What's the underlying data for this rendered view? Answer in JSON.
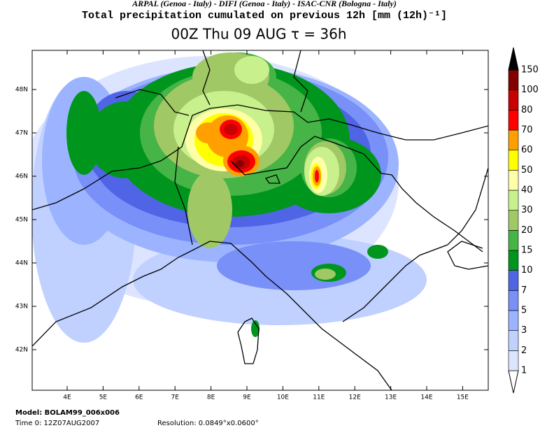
{
  "header": {
    "credits": "ARPAL (Genoa - Italy)  -  DIFI (Genoa - Italy)  -  ISAC-CNR (Bologna - Italy)",
    "title": "Total precipitation cumulated on previous 12h [mm (12h)⁻¹]",
    "subtitle": "00Z Thu 09 AUG  τ = 36h"
  },
  "map": {
    "lat_labels": [
      "48N",
      "47N",
      "46N",
      "45N",
      "44N",
      "43N",
      "42N"
    ],
    "lon_labels": [
      "4E",
      "5E",
      "6E",
      "7E",
      "8E",
      "9E",
      "10E",
      "11E",
      "12E",
      "13E",
      "14E",
      "15E"
    ]
  },
  "colorbar": {
    "levels": [
      1,
      2,
      3,
      5,
      7,
      10,
      15,
      20,
      30,
      40,
      50,
      60,
      70,
      80,
      100,
      150
    ],
    "colors": [
      "#ffffff",
      "#dce4ff",
      "#c0d0ff",
      "#9cb4ff",
      "#7890f8",
      "#5064e6",
      "#00961e",
      "#46b446",
      "#a0c864",
      "#c8f08c",
      "#ffffa8",
      "#ffff00",
      "#ffa000",
      "#ff0000",
      "#c80000",
      "#820000",
      "#000000"
    ]
  },
  "footer": {
    "model": "Model: BOLAM99_006x006",
    "time": "Time 0: 12Z07AUG2007",
    "resolution": "Resolution: 0.0849°x0.0600°"
  }
}
